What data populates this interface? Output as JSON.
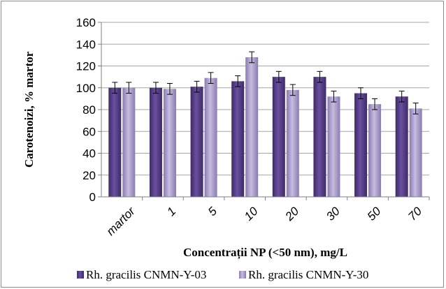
{
  "chart_data": {
    "type": "bar",
    "categories": [
      "martor",
      "1",
      "5",
      "10",
      "20",
      "30",
      "50",
      "70"
    ],
    "series": [
      {
        "name": "Rh. gracilis CNMN-Y-03",
        "values": [
          100,
          100,
          101,
          106,
          110,
          110,
          95,
          92
        ],
        "errors": [
          5,
          5,
          5,
          5,
          5,
          5,
          5,
          5
        ],
        "color": "#5b3f8f"
      },
      {
        "name": "Rh. gracilis CNMN-Y-30",
        "values": [
          100,
          99,
          109,
          128,
          98,
          92,
          85,
          81
        ],
        "errors": [
          5,
          5,
          5,
          5,
          5,
          5,
          5,
          5
        ],
        "color": "#a696c8"
      }
    ],
    "xlabel": "Concentrații NP (<50 nm), mg/L",
    "ylabel": "Carotenoizi, % martor",
    "ylim": [
      0,
      160
    ],
    "yticks": [
      0,
      20,
      40,
      60,
      80,
      100,
      120,
      140,
      160
    ],
    "grid": true,
    "legend_position": "bottom"
  }
}
